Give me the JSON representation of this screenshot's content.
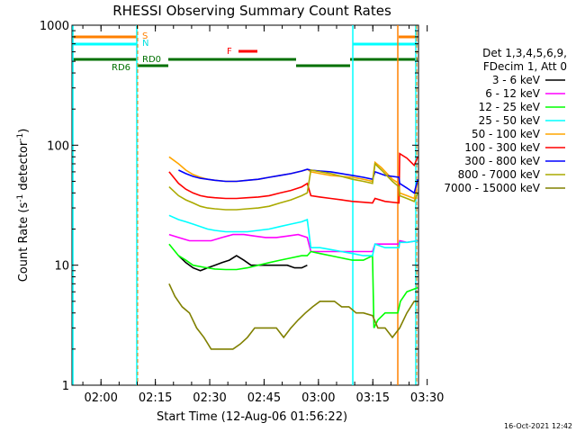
{
  "chart_data": {
    "type": "line",
    "title": "RHESSI Observing Summary Count Rates",
    "xlabel": "Start Time (12-Aug-06 01:56:22)",
    "ylabel": "Count Rate (s",
    "ylabel_sup1": "-1",
    "ylabel_mid": " detector",
    "ylabel_sup2": "-1",
    "ylabel_end": ")",
    "y_scale": "log",
    "ylim": [
      1,
      1000
    ],
    "xlim_min": [
      -4.4,
      91.2
    ],
    "x_ticks": [
      {
        "min": 3.6,
        "label": "02:00"
      },
      {
        "min": 18.6,
        "label": "02:15"
      },
      {
        "min": 33.6,
        "label": "02:30"
      },
      {
        "min": 48.6,
        "label": "02:45"
      },
      {
        "min": 63.6,
        "label": "03:00"
      },
      {
        "min": 78.6,
        "label": "03:15"
      },
      {
        "min": 93.6,
        "label": "03:30"
      }
    ],
    "y_ticks": [
      {
        "value": 1,
        "label": "1"
      },
      {
        "value": 10,
        "label": "10"
      },
      {
        "value": 100,
        "label": "100"
      },
      {
        "value": 1000,
        "label": "1000"
      }
    ],
    "legend_header": [
      "Det 1,3,4,5,6,9,",
      "FDecim 1, Att 0"
    ],
    "series": [
      {
        "name": "3 - 6 keV",
        "color": "#000000",
        "points": [
          [
            25,
            12
          ],
          [
            27,
            10.5
          ],
          [
            29,
            9.5
          ],
          [
            31,
            9
          ],
          [
            33,
            9.5
          ],
          [
            35,
            10
          ],
          [
            37,
            10.5
          ],
          [
            39,
            11
          ],
          [
            41,
            12
          ],
          [
            43,
            11
          ],
          [
            45,
            10
          ],
          [
            47,
            10
          ],
          [
            49,
            10
          ],
          [
            51,
            10
          ],
          [
            53,
            10
          ],
          [
            55,
            10
          ],
          [
            57,
            9.5
          ],
          [
            59,
            9.5
          ],
          [
            60.5,
            10
          ]
        ]
      },
      {
        "name": "6 - 12 keV",
        "color": "#ff00ff",
        "points": [
          [
            22.4,
            18
          ],
          [
            25,
            17
          ],
          [
            28,
            16
          ],
          [
            31,
            16
          ],
          [
            34,
            16
          ],
          [
            37,
            17
          ],
          [
            40,
            18
          ],
          [
            43,
            18
          ],
          [
            46,
            17.5
          ],
          [
            49,
            17
          ],
          [
            52,
            17
          ],
          [
            55,
            17.5
          ],
          [
            58,
            18
          ],
          [
            60.5,
            17
          ],
          [
            61.5,
            13
          ],
          [
            64,
            13
          ],
          [
            67,
            13
          ],
          [
            70,
            13
          ],
          [
            73,
            13
          ],
          [
            76,
            13
          ],
          [
            78.5,
            13
          ],
          [
            79.2,
            15
          ],
          [
            82,
            15
          ],
          [
            84.5,
            15
          ],
          [
            85.8,
            15
          ],
          [
            86,
            16
          ],
          [
            88,
            15.5
          ],
          [
            91,
            16
          ]
        ]
      },
      {
        "name": "12 - 25 keV",
        "color": "#00ff00",
        "points": [
          [
            22.4,
            15
          ],
          [
            25,
            12
          ],
          [
            27,
            11
          ],
          [
            29,
            10
          ],
          [
            32,
            9.6
          ],
          [
            35,
            9.3
          ],
          [
            38,
            9.2
          ],
          [
            41,
            9.2
          ],
          [
            44,
            9.5
          ],
          [
            47,
            10
          ],
          [
            50,
            10.5
          ],
          [
            53,
            11
          ],
          [
            56,
            11.5
          ],
          [
            59,
            12
          ],
          [
            60.5,
            12
          ],
          [
            61.5,
            13
          ],
          [
            64,
            12.5
          ],
          [
            67,
            12
          ],
          [
            70,
            11.5
          ],
          [
            73,
            11
          ],
          [
            76,
            11
          ],
          [
            78.5,
            12
          ],
          [
            78.9,
            3
          ],
          [
            80,
            3.5
          ],
          [
            82,
            4
          ],
          [
            84,
            4
          ],
          [
            85.5,
            4
          ],
          [
            86.2,
            5
          ],
          [
            88,
            6
          ],
          [
            91,
            6.5
          ]
        ]
      },
      {
        "name": "25 - 50 keV",
        "color": "#00ffff",
        "points": [
          [
            22.4,
            26
          ],
          [
            25,
            24
          ],
          [
            27,
            23
          ],
          [
            29,
            22
          ],
          [
            31,
            21
          ],
          [
            33,
            20
          ],
          [
            35,
            19.5
          ],
          [
            38,
            19
          ],
          [
            41,
            19
          ],
          [
            44,
            19
          ],
          [
            47,
            19.5
          ],
          [
            50,
            20
          ],
          [
            53,
            21
          ],
          [
            56,
            22
          ],
          [
            59,
            23
          ],
          [
            60.5,
            24
          ],
          [
            61.5,
            14
          ],
          [
            64,
            14
          ],
          [
            67,
            13.5
          ],
          [
            70,
            13
          ],
          [
            73,
            12.5
          ],
          [
            76,
            12
          ],
          [
            78.5,
            12
          ],
          [
            79.2,
            15
          ],
          [
            82,
            14
          ],
          [
            85.8,
            14
          ],
          [
            86,
            15.5
          ],
          [
            88,
            15.5
          ],
          [
            91,
            16
          ]
        ]
      },
      {
        "name": "50 - 100 keV",
        "color": "#ffa500",
        "points": [
          [
            22.4,
            80
          ],
          [
            25,
            70
          ],
          [
            27,
            62
          ],
          [
            29,
            57
          ],
          [
            31,
            54
          ],
          [
            33,
            52
          ],
          [
            35,
            51
          ],
          [
            38,
            50
          ],
          [
            41,
            50
          ],
          [
            44,
            51
          ],
          [
            47,
            52
          ],
          [
            50,
            54
          ],
          [
            53,
            56
          ],
          [
            56,
            58
          ],
          [
            59,
            61
          ],
          [
            60.5,
            63
          ],
          [
            61.5,
            60
          ],
          [
            64,
            58
          ],
          [
            67,
            56
          ],
          [
            70,
            55
          ],
          [
            73,
            54
          ],
          [
            76,
            52
          ],
          [
            78.5,
            50
          ],
          [
            79.2,
            72
          ],
          [
            81,
            65
          ],
          [
            84,
            52
          ],
          [
            85.8,
            48
          ],
          [
            86,
            40
          ],
          [
            88,
            38
          ],
          [
            90,
            36
          ],
          [
            91,
            50
          ]
        ]
      },
      {
        "name": "100 - 300 keV",
        "color": "#ff0000",
        "points": [
          [
            22.4,
            60
          ],
          [
            25,
            48
          ],
          [
            27,
            43
          ],
          [
            29,
            40
          ],
          [
            31,
            38
          ],
          [
            33,
            37
          ],
          [
            35,
            36.5
          ],
          [
            38,
            36
          ],
          [
            41,
            36
          ],
          [
            44,
            36.5
          ],
          [
            47,
            37
          ],
          [
            50,
            38
          ],
          [
            53,
            40
          ],
          [
            56,
            42
          ],
          [
            59,
            45
          ],
          [
            60.5,
            48
          ],
          [
            61.5,
            38
          ],
          [
            64,
            37
          ],
          [
            67,
            36
          ],
          [
            70,
            35
          ],
          [
            73,
            34
          ],
          [
            76,
            33.5
          ],
          [
            78.5,
            33
          ],
          [
            79.2,
            36
          ],
          [
            82,
            34
          ],
          [
            85.8,
            33
          ],
          [
            86,
            85
          ],
          [
            88,
            78
          ],
          [
            90,
            68
          ],
          [
            91,
            80
          ]
        ]
      },
      {
        "name": "300 - 800 keV",
        "color": "#0000ff",
        "points": [
          [
            25,
            62
          ],
          [
            27,
            58
          ],
          [
            29,
            55
          ],
          [
            31,
            53
          ],
          [
            33,
            52
          ],
          [
            35,
            51
          ],
          [
            38,
            50
          ],
          [
            41,
            50
          ],
          [
            44,
            51
          ],
          [
            47,
            52
          ],
          [
            50,
            54
          ],
          [
            53,
            56
          ],
          [
            56,
            58
          ],
          [
            59,
            61
          ],
          [
            60.5,
            63
          ],
          [
            61.5,
            62
          ],
          [
            64,
            61
          ],
          [
            67,
            60
          ],
          [
            70,
            58
          ],
          [
            73,
            56
          ],
          [
            76,
            54
          ],
          [
            78.5,
            52
          ],
          [
            79.2,
            60
          ],
          [
            82,
            56
          ],
          [
            85.8,
            54
          ],
          [
            86,
            48
          ],
          [
            88,
            44
          ],
          [
            90,
            40
          ],
          [
            91,
            52
          ]
        ]
      },
      {
        "name": "800 - 7000 keV",
        "color": "#aaaa00",
        "points": [
          [
            22.4,
            45
          ],
          [
            25,
            38
          ],
          [
            27,
            35
          ],
          [
            29,
            33
          ],
          [
            31,
            31
          ],
          [
            33,
            30
          ],
          [
            35,
            29.5
          ],
          [
            38,
            29
          ],
          [
            41,
            29
          ],
          [
            44,
            29.5
          ],
          [
            47,
            30
          ],
          [
            50,
            31
          ],
          [
            53,
            33
          ],
          [
            56,
            35
          ],
          [
            59,
            38
          ],
          [
            60.5,
            40
          ],
          [
            61.5,
            62
          ],
          [
            64,
            60
          ],
          [
            67,
            58
          ],
          [
            70,
            55
          ],
          [
            73,
            52
          ],
          [
            76,
            50
          ],
          [
            78.5,
            48
          ],
          [
            79.2,
            70
          ],
          [
            81,
            62
          ],
          [
            84,
            50
          ],
          [
            85.8,
            45
          ],
          [
            86,
            38
          ],
          [
            88,
            36
          ],
          [
            90,
            34
          ],
          [
            91,
            40
          ]
        ]
      },
      {
        "name": "7000 - 15000 keV",
        "color": "#808000",
        "points": [
          [
            22.4,
            7
          ],
          [
            24,
            5.5
          ],
          [
            26,
            4.5
          ],
          [
            28,
            4
          ],
          [
            30,
            3
          ],
          [
            32,
            2.5
          ],
          [
            34,
            2
          ],
          [
            36,
            2
          ],
          [
            38,
            2
          ],
          [
            40,
            2
          ],
          [
            42,
            2.2
          ],
          [
            44,
            2.5
          ],
          [
            46,
            3
          ],
          [
            48,
            3
          ],
          [
            50,
            3
          ],
          [
            52,
            3
          ],
          [
            54,
            2.5
          ],
          [
            56,
            3
          ],
          [
            58,
            3.5
          ],
          [
            60,
            4
          ],
          [
            62,
            4.5
          ],
          [
            64,
            5
          ],
          [
            66,
            5
          ],
          [
            68,
            5
          ],
          [
            70,
            4.5
          ],
          [
            72,
            4.5
          ],
          [
            74,
            4
          ],
          [
            76,
            4
          ],
          [
            78.5,
            3.8
          ],
          [
            80,
            3
          ],
          [
            82,
            3
          ],
          [
            84,
            2.5
          ],
          [
            86,
            3
          ],
          [
            88,
            4
          ],
          [
            90,
            5
          ],
          [
            91,
            5
          ]
        ]
      }
    ],
    "annotations": [
      {
        "label": "S",
        "color": "#ff8000"
      },
      {
        "label": "N",
        "color": "#00e0e0"
      },
      {
        "label": "F",
        "color": "#ff0000"
      },
      {
        "label": "RD0",
        "color": "#007000"
      },
      {
        "label": "RD6",
        "color": "#007000"
      }
    ],
    "timestamp": "16-Oct-2021 12:42"
  }
}
